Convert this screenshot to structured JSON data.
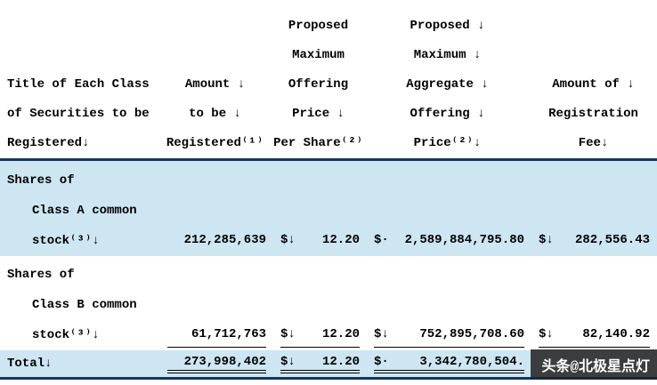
{
  "page": {
    "background": "#ffffff",
    "highlight_color": "#cde6f2",
    "rule_color": "#17365d"
  },
  "table": {
    "header": {
      "rows": [
        [
          "",
          "",
          "Proposed",
          "Proposed ↓",
          ""
        ],
        [
          "",
          "",
          "Maximum",
          "Maximum ↓",
          ""
        ],
        [
          "Title of Each Class",
          "Amount ↓",
          "Offering",
          "Aggregate ↓",
          "Amount of ↓"
        ],
        [
          "of Securities to be",
          "to be ↓",
          "Price ↓",
          "Offering ↓",
          "Registration"
        ],
        [
          "Registered↓",
          "Registered⁽¹⁾",
          "Per Share⁽²⁾",
          "Price⁽²⁾↓",
          "Fee↓"
        ]
      ]
    },
    "rows": [
      {
        "title_lines": [
          "Shares of",
          "Class A common",
          "stock⁽³⁾↓"
        ],
        "amount": "212,285,639",
        "price_currency": "$↓",
        "price": "12.20",
        "aggregate_currency": "$·",
        "aggregate": "2,589,884,795.80",
        "fee_currency": "$↓",
        "fee": "282,556.43"
      },
      {
        "title_lines": [
          "Shares of",
          "Class B common",
          "stock⁽³⁾↓"
        ],
        "amount": "61,712,763",
        "price_currency": "$↓",
        "price": "12.20",
        "aggregate_currency": "$↓",
        "aggregate": "752,895,708.60",
        "fee_currency": "$↓",
        "fee": "82,140.92"
      }
    ],
    "total": {
      "label": "Total↓",
      "amount": "273,998,402",
      "price_currency": "$↓",
      "price": "12.20",
      "aggregate_currency": "$·",
      "aggregate": "3,342,780,504.",
      "fee_currency": "",
      "fee": ""
    }
  },
  "watermark": {
    "text": "头条@北极星点灯"
  }
}
